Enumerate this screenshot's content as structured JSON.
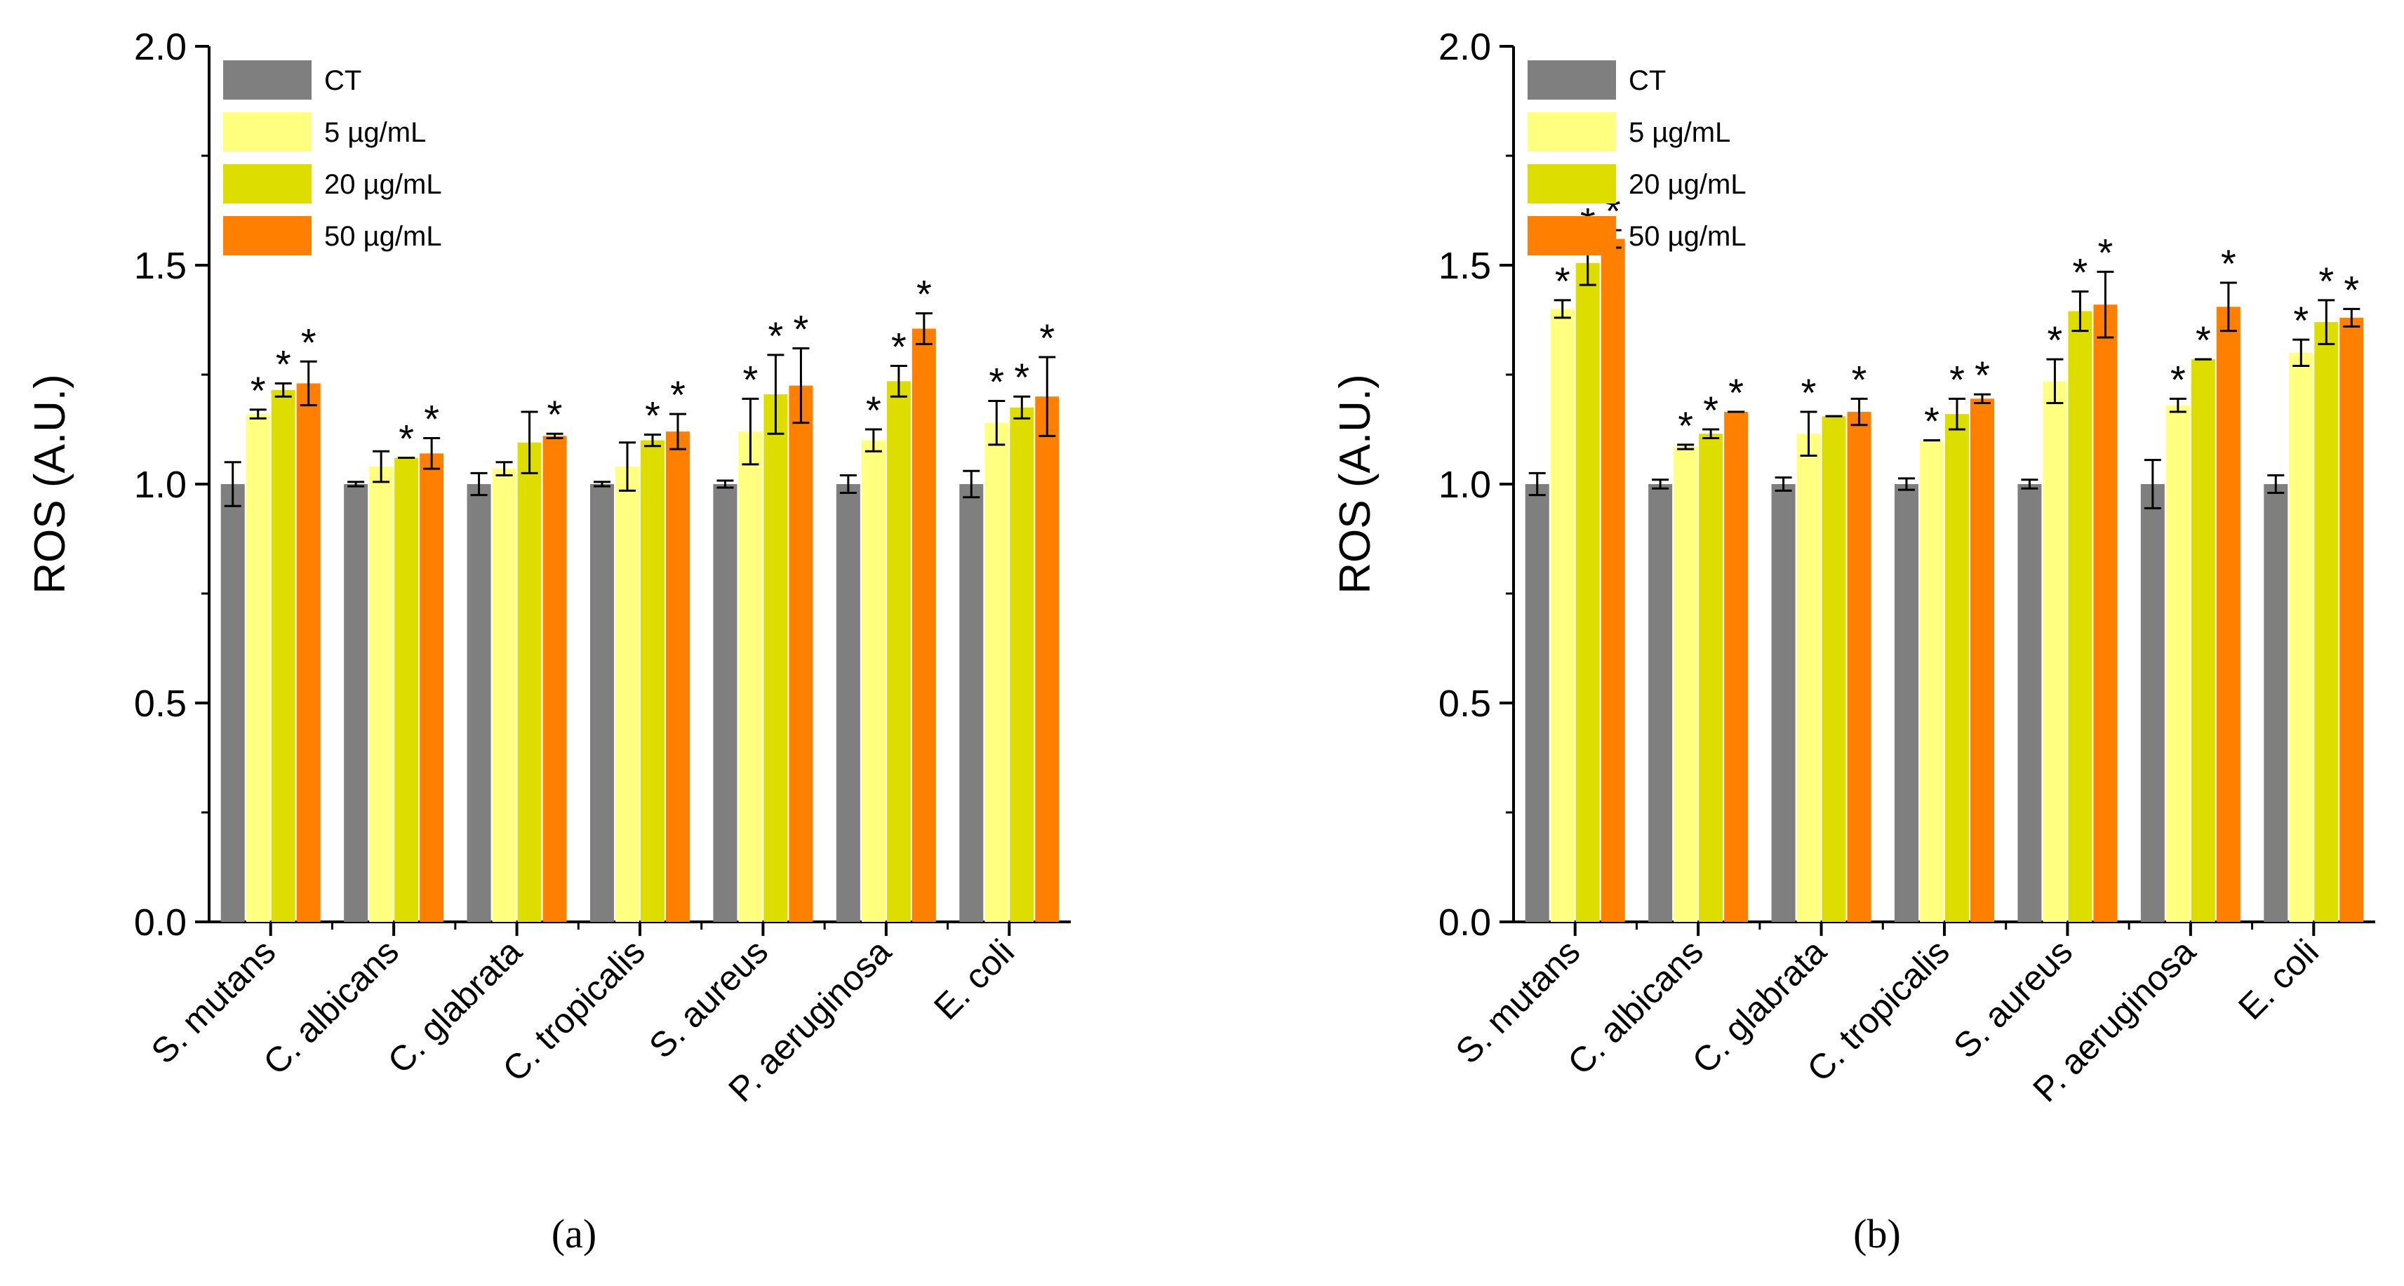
{
  "colors": {
    "CT": "#7f7f7f",
    "5 µg/mL": "#ffff80",
    "20 µg/mL": "#dddd00",
    "50 µg/mL": "#ff8000"
  },
  "chart_data": [
    {
      "type": "bar",
      "panel_label": "(a)",
      "panel_letter": "a",
      "ylabel": "ROS (A.U.)",
      "xlabel": "",
      "ylim": [
        0,
        2.0
      ],
      "yticks": [
        "0.0",
        "0.5",
        "1.0",
        "1.5",
        "2.0"
      ],
      "legend_position": "top-left",
      "categories": [
        "S. mutans",
        "C. albicans",
        "C. glabrata",
        "C. tropicalis",
        "S. aureus",
        "P. aeruginosa",
        "E. coli"
      ],
      "series": [
        {
          "name": "CT",
          "values": [
            1.0,
            1.0,
            1.0,
            1.0,
            1.0,
            1.0,
            1.0
          ],
          "errors": [
            0.05,
            0.005,
            0.025,
            0.005,
            0.008,
            0.02,
            0.03
          ],
          "sig": [
            false,
            false,
            false,
            false,
            false,
            false,
            false
          ]
        },
        {
          "name": "5 µg/mL",
          "values": [
            1.16,
            1.04,
            1.035,
            1.04,
            1.12,
            1.1,
            1.14
          ],
          "errors": [
            0.01,
            0.035,
            0.015,
            0.055,
            0.075,
            0.025,
            0.05
          ],
          "sig": [
            true,
            false,
            false,
            false,
            true,
            true,
            true
          ]
        },
        {
          "name": "20 µg/mL",
          "values": [
            1.215,
            1.06,
            1.095,
            1.1,
            1.205,
            1.235,
            1.175
          ],
          "errors": [
            0.015,
            0.0,
            0.07,
            0.013,
            0.09,
            0.035,
            0.025
          ],
          "sig": [
            true,
            true,
            false,
            true,
            true,
            true,
            true
          ]
        },
        {
          "name": "50 µg/mL",
          "values": [
            1.23,
            1.07,
            1.11,
            1.12,
            1.225,
            1.355,
            1.2
          ],
          "errors": [
            0.05,
            0.035,
            0.005,
            0.04,
            0.085,
            0.035,
            0.09
          ],
          "sig": [
            true,
            true,
            true,
            true,
            true,
            true,
            true
          ]
        }
      ]
    },
    {
      "type": "bar",
      "panel_label": "(b)",
      "panel_letter": "b",
      "ylabel": "ROS (A.U.)",
      "xlabel": "",
      "ylim": [
        0,
        2.0
      ],
      "yticks": [
        "0.0",
        "0.5",
        "1.0",
        "1.5",
        "2.0"
      ],
      "legend_position": "top-left",
      "categories": [
        "S. mutans",
        "C. albicans",
        "C. glabrata",
        "C. tropicalis",
        "S. aureus",
        "P. aeruginosa",
        "E. coli"
      ],
      "series": [
        {
          "name": "CT",
          "values": [
            1.0,
            1.0,
            1.0,
            1.0,
            1.0,
            1.0,
            1.0
          ],
          "errors": [
            0.025,
            0.01,
            0.015,
            0.013,
            0.01,
            0.055,
            0.02
          ],
          "sig": [
            false,
            false,
            false,
            false,
            false,
            false,
            false
          ]
        },
        {
          "name": "5 µg/mL",
          "values": [
            1.4,
            1.085,
            1.115,
            1.1,
            1.235,
            1.18,
            1.3
          ],
          "errors": [
            0.02,
            0.005,
            0.05,
            0.0,
            0.05,
            0.015,
            0.03
          ],
          "sig": [
            true,
            true,
            true,
            true,
            true,
            true,
            true
          ]
        },
        {
          "name": "20 µg/mL",
          "values": [
            1.505,
            1.115,
            1.155,
            1.16,
            1.395,
            1.285,
            1.37
          ],
          "errors": [
            0.05,
            0.01,
            0.0,
            0.035,
            0.045,
            0.0,
            0.05
          ],
          "sig": [
            true,
            true,
            false,
            true,
            true,
            true,
            true
          ]
        },
        {
          "name": "50 µg/mL",
          "values": [
            1.56,
            1.165,
            1.165,
            1.195,
            1.41,
            1.405,
            1.38
          ],
          "errors": [
            0.02,
            0.0,
            0.03,
            0.01,
            0.075,
            0.055,
            0.02
          ],
          "sig": [
            true,
            true,
            true,
            true,
            true,
            true,
            true
          ]
        }
      ]
    }
  ]
}
